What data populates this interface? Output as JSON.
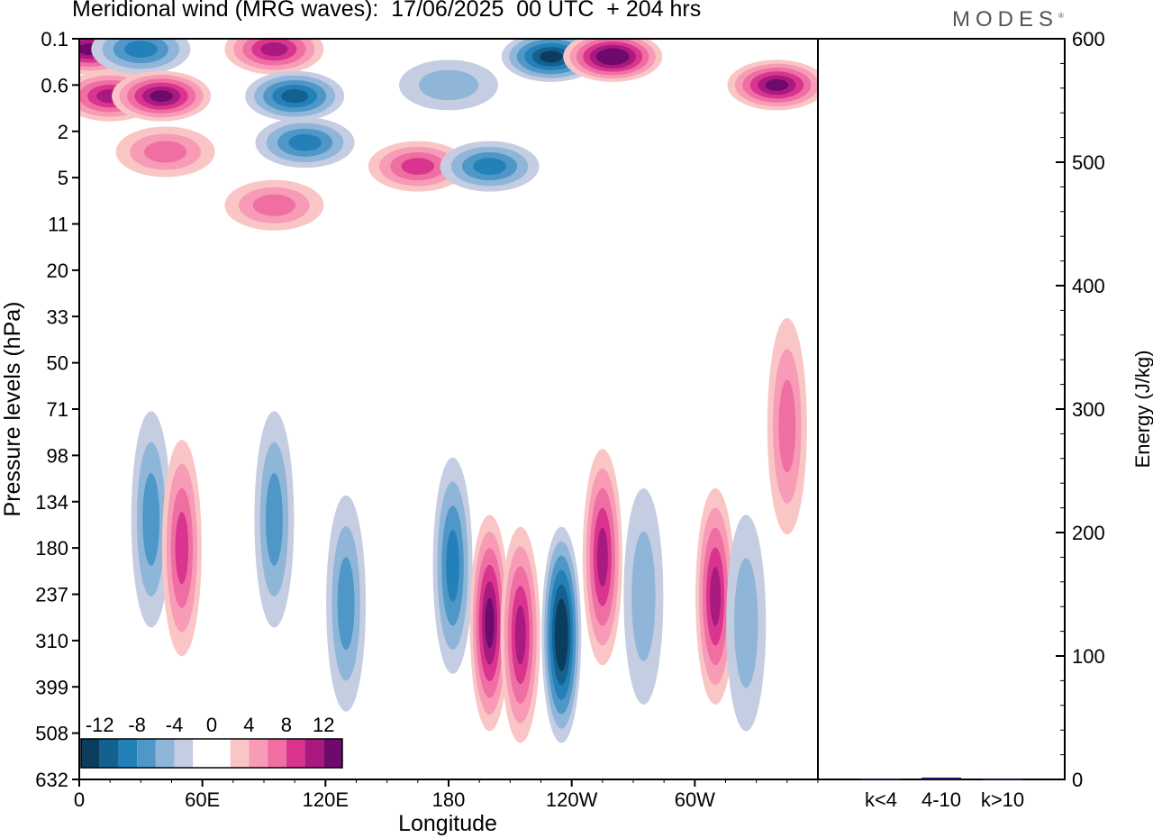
{
  "title": "Meridional wind (MRG waves):  17/06/2025  00 UTC  + 204 hrs",
  "logo": "MODES",
  "chart_data": [
    {
      "type": "heatmap",
      "xlabel": "Longitude",
      "ylabel": "Pressure levels (hPa)",
      "x_ticks": [
        "0",
        "60E",
        "120E",
        "180",
        "120W",
        "60W"
      ],
      "y_ticks": [
        "0.1",
        "0.6",
        "2",
        "5",
        "11",
        "20",
        "33",
        "50",
        "71",
        "98",
        "134",
        "180",
        "237",
        "310",
        "399",
        "508",
        "632"
      ],
      "colorbar": {
        "labels": [
          "-12",
          "-8",
          "-4",
          "0",
          "4",
          "8",
          "12"
        ],
        "colors": [
          "#0b3d5e",
          "#14618f",
          "#2480b8",
          "#4f97c6",
          "#8fb6d9",
          "#c5cde2",
          "#ffffff",
          "#ffffff",
          "#f9c6c5",
          "#f79bb6",
          "#ef6fa3",
          "#d9358f",
          "#a81a7f",
          "#6e0a6c"
        ]
      },
      "features": [
        {
          "lon": 5,
          "p": 0.15,
          "value": 12
        },
        {
          "lon": 15,
          "p": 0.8,
          "value": 10
        },
        {
          "lon": 30,
          "p": 0.15,
          "value": -8
        },
        {
          "lon": 40,
          "p": 0.8,
          "value": 12
        },
        {
          "lon": 42,
          "p": 3,
          "value": 6
        },
        {
          "lon": 95,
          "p": 0.15,
          "value": 10
        },
        {
          "lon": 105,
          "p": 0.8,
          "value": -10
        },
        {
          "lon": 110,
          "p": 2.5,
          "value": -8
        },
        {
          "lon": 165,
          "p": 4,
          "value": 8
        },
        {
          "lon": 180,
          "p": 0.6,
          "value": -4
        },
        {
          "lon": 200,
          "p": 4,
          "value": -8
        },
        {
          "lon": 230,
          "p": 0.2,
          "value": -12
        },
        {
          "lon": 260,
          "p": 0.2,
          "value": 14
        },
        {
          "lon": 340,
          "p": 0.6,
          "value": 12
        },
        {
          "lon": 95,
          "p": 8,
          "value": 6
        },
        {
          "lon": 35,
          "p": 150,
          "value": -6
        },
        {
          "lon": 50,
          "p": 180,
          "value": 8
        },
        {
          "lon": 95,
          "p": 150,
          "value": -6
        },
        {
          "lon": 130,
          "p": 250,
          "value": -6
        },
        {
          "lon": 182,
          "p": 200,
          "value": -8
        },
        {
          "lon": 200,
          "p": 280,
          "value": 12
        },
        {
          "lon": 215,
          "p": 300,
          "value": 10
        },
        {
          "lon": 235,
          "p": 300,
          "value": -14
        },
        {
          "lon": 255,
          "p": 190,
          "value": 10
        },
        {
          "lon": 275,
          "p": 240,
          "value": -4
        },
        {
          "lon": 310,
          "p": 240,
          "value": 10
        },
        {
          "lon": 325,
          "p": 280,
          "value": -4
        },
        {
          "lon": 345,
          "p": 80,
          "value": 6
        }
      ]
    },
    {
      "type": "bar",
      "categories": [
        "k<4",
        "4-10",
        "k>10"
      ],
      "values": [
        0.5,
        1.5,
        0.3
      ],
      "ylabel": "Energy (J/kg)",
      "ylim": [
        0,
        600
      ],
      "y_ticks": [
        "0",
        "100",
        "200",
        "300",
        "400",
        "500",
        "600"
      ],
      "bar_color": "#1a1a6e"
    }
  ]
}
